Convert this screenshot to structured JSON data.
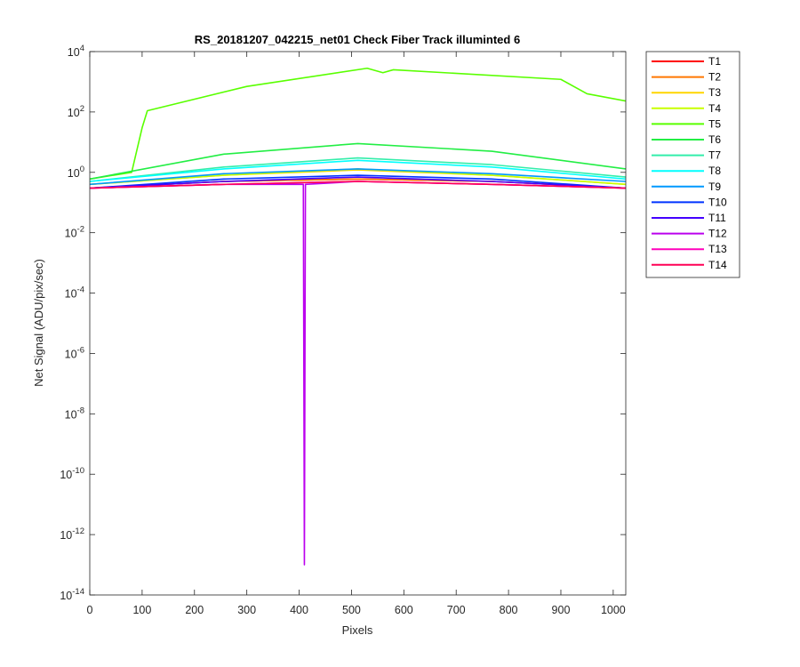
{
  "chart_data": {
    "type": "line",
    "title": "RS_20181207_042215_net01   Check Fiber     Track illuminted 6",
    "xlabel": "Pixels",
    "ylabel": "Net Signal (ADU/pix/sec)",
    "xlim": [
      0,
      1024
    ],
    "ylim": [
      1e-14,
      10000
    ],
    "yscale": "log",
    "grid": false,
    "legend_position": "outside-right-top",
    "xticks": [
      0,
      100,
      200,
      300,
      400,
      500,
      600,
      700,
      800,
      900,
      1000
    ],
    "yticks": [
      {
        "base": "10",
        "exp": "-14",
        "value": -14
      },
      {
        "base": "10",
        "exp": "-12",
        "value": -12
      },
      {
        "base": "10",
        "exp": "-10",
        "value": -10
      },
      {
        "base": "10",
        "exp": "-8",
        "value": -8
      },
      {
        "base": "10",
        "exp": "-6",
        "value": -6
      },
      {
        "base": "10",
        "exp": "-4",
        "value": -4
      },
      {
        "base": "10",
        "exp": "-2",
        "value": -2
      },
      {
        "base": "10",
        "exp": "0",
        "value": 0
      },
      {
        "base": "10",
        "exp": "2",
        "value": 2
      },
      {
        "base": "10",
        "exp": "4",
        "value": 4
      }
    ],
    "series": [
      {
        "name": "T1",
        "color": "#ff0000",
        "x": [
          0,
          256,
          512,
          768,
          1024
        ],
        "y": [
          0.3,
          0.5,
          0.6,
          0.5,
          0.3
        ]
      },
      {
        "name": "T2",
        "color": "#ff7700",
        "x": [
          0,
          256,
          512,
          768,
          1024
        ],
        "y": [
          0.3,
          0.5,
          0.6,
          0.5,
          0.3
        ]
      },
      {
        "name": "T3",
        "color": "#ffd500",
        "x": [
          0,
          256,
          512,
          768,
          1024
        ],
        "y": [
          0.4,
          0.8,
          1.2,
          0.8,
          0.4
        ]
      },
      {
        "name": "T4",
        "color": "#c8ff00",
        "x": [
          0,
          256,
          512,
          768,
          1024
        ],
        "y": [
          0.4,
          0.8,
          1.3,
          0.8,
          0.4
        ]
      },
      {
        "name": "T5",
        "color": "#59ff00",
        "x": [
          0,
          80,
          100,
          110,
          300,
          530,
          560,
          580,
          900,
          950,
          1024
        ],
        "y": [
          0.6,
          1,
          30,
          110,
          700,
          2800,
          2000,
          2500,
          1200,
          400,
          230
        ]
      },
      {
        "name": "T6",
        "color": "#22ee44",
        "x": [
          0,
          256,
          512,
          768,
          1024
        ],
        "y": [
          0.6,
          4,
          9,
          5,
          1.3
        ]
      },
      {
        "name": "T7",
        "color": "#33eeaa",
        "x": [
          0,
          256,
          512,
          768,
          1024
        ],
        "y": [
          0.5,
          1.5,
          3,
          1.8,
          0.7
        ]
      },
      {
        "name": "T8",
        "color": "#00ffff",
        "x": [
          0,
          256,
          512,
          768,
          1024
        ],
        "y": [
          0.5,
          1.3,
          2.5,
          1.5,
          0.6
        ]
      },
      {
        "name": "T9",
        "color": "#0099ff",
        "x": [
          0,
          256,
          512,
          768,
          1024
        ],
        "y": [
          0.4,
          0.9,
          1.3,
          0.9,
          0.5
        ]
      },
      {
        "name": "T10",
        "color": "#0033ff",
        "x": [
          0,
          256,
          512,
          768,
          1024
        ],
        "y": [
          0.3,
          0.6,
          0.8,
          0.6,
          0.3
        ]
      },
      {
        "name": "T11",
        "color": "#4400ff",
        "x": [
          0,
          256,
          512,
          768,
          1024
        ],
        "y": [
          0.3,
          0.5,
          0.7,
          0.5,
          0.3
        ]
      },
      {
        "name": "T12",
        "color": "#bb00ee",
        "x": [
          0,
          256,
          408,
          410,
          412,
          512,
          768,
          1024
        ],
        "y": [
          0.3,
          0.4,
          0.4,
          1e-13,
          0.4,
          0.5,
          0.4,
          0.3
        ]
      },
      {
        "name": "T13",
        "color": "#ff00bb",
        "x": [
          0,
          256,
          512,
          768,
          1024
        ],
        "y": [
          0.3,
          0.4,
          0.5,
          0.4,
          0.3
        ]
      },
      {
        "name": "T14",
        "color": "#ff0055",
        "x": [
          0,
          256,
          512,
          768,
          1024
        ],
        "y": [
          0.3,
          0.4,
          0.5,
          0.4,
          0.3
        ]
      }
    ]
  }
}
